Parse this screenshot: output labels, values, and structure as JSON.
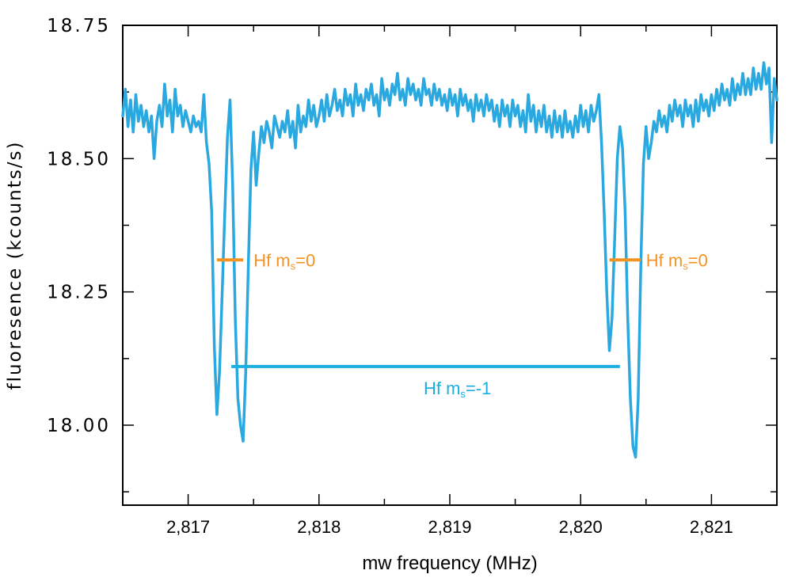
{
  "chart_data": {
    "type": "line",
    "xlabel": "mw frequency (MHz)",
    "ylabel": "fluoresence (kcounts/s)",
    "xlim": [
      2816.5,
      2821.5
    ],
    "ylim": [
      17.85,
      18.75
    ],
    "xticks": [
      2817,
      2818,
      2819,
      2820,
      2821
    ],
    "xtick_labels": [
      "2,817",
      "2,818",
      "2,819",
      "2,820",
      "2,821"
    ],
    "yticks": [
      18.0,
      18.25,
      18.5,
      18.75
    ],
    "ytick_labels": [
      "18.00",
      "18.25",
      "18.50",
      "18.75"
    ],
    "x_minor_step": 0.5,
    "y_minor_step": 0.125,
    "series": [
      {
        "color": "#2AA8E0",
        "points": [
          [
            2816.5,
            18.58
          ],
          [
            2816.52,
            18.63
          ],
          [
            2816.54,
            18.56
          ],
          [
            2816.56,
            18.61
          ],
          [
            2816.58,
            18.55
          ],
          [
            2816.6,
            18.62
          ],
          [
            2816.62,
            18.57
          ],
          [
            2816.64,
            18.6
          ],
          [
            2816.66,
            18.56
          ],
          [
            2816.68,
            18.59
          ],
          [
            2816.7,
            18.55
          ],
          [
            2816.72,
            18.58
          ],
          [
            2816.74,
            18.5
          ],
          [
            2816.76,
            18.57
          ],
          [
            2816.78,
            18.6
          ],
          [
            2816.8,
            18.56
          ],
          [
            2816.82,
            18.64
          ],
          [
            2816.84,
            18.58
          ],
          [
            2816.86,
            18.61
          ],
          [
            2816.88,
            18.55
          ],
          [
            2816.9,
            18.63
          ],
          [
            2816.92,
            18.58
          ],
          [
            2816.94,
            18.6
          ],
          [
            2816.96,
            18.56
          ],
          [
            2816.98,
            18.59
          ],
          [
            2817.0,
            18.57
          ],
          [
            2817.02,
            18.55
          ],
          [
            2817.04,
            18.58
          ],
          [
            2817.06,
            18.56
          ],
          [
            2817.08,
            18.57
          ],
          [
            2817.1,
            18.55
          ],
          [
            2817.12,
            18.62
          ],
          [
            2817.14,
            18.53
          ],
          [
            2817.16,
            18.49
          ],
          [
            2817.18,
            18.4
          ],
          [
            2817.2,
            18.15
          ],
          [
            2817.22,
            18.02
          ],
          [
            2817.24,
            18.1
          ],
          [
            2817.26,
            18.25
          ],
          [
            2817.28,
            18.4
          ],
          [
            2817.3,
            18.54
          ],
          [
            2817.32,
            18.61
          ],
          [
            2817.34,
            18.45
          ],
          [
            2817.36,
            18.2
          ],
          [
            2817.38,
            18.05
          ],
          [
            2817.4,
            18.0
          ],
          [
            2817.42,
            17.97
          ],
          [
            2817.44,
            18.1
          ],
          [
            2817.46,
            18.3
          ],
          [
            2817.48,
            18.48
          ],
          [
            2817.5,
            18.55
          ],
          [
            2817.52,
            18.45
          ],
          [
            2817.54,
            18.51
          ],
          [
            2817.56,
            18.56
          ],
          [
            2817.58,
            18.53
          ],
          [
            2817.6,
            18.57
          ],
          [
            2817.62,
            18.55
          ],
          [
            2817.64,
            18.52
          ],
          [
            2817.66,
            18.58
          ],
          [
            2817.68,
            18.56
          ],
          [
            2817.7,
            18.54
          ],
          [
            2817.72,
            18.57
          ],
          [
            2817.74,
            18.55
          ],
          [
            2817.76,
            18.59
          ],
          [
            2817.78,
            18.54
          ],
          [
            2817.8,
            18.57
          ],
          [
            2817.82,
            18.52
          ],
          [
            2817.84,
            18.6
          ],
          [
            2817.86,
            18.55
          ],
          [
            2817.88,
            18.58
          ],
          [
            2817.9,
            18.56
          ],
          [
            2817.92,
            18.61
          ],
          [
            2817.94,
            18.57
          ],
          [
            2817.96,
            18.6
          ],
          [
            2817.98,
            18.56
          ],
          [
            2818.0,
            18.58
          ],
          [
            2818.02,
            18.61
          ],
          [
            2818.04,
            18.57
          ],
          [
            2818.06,
            18.62
          ],
          [
            2818.08,
            18.58
          ],
          [
            2818.1,
            18.6
          ],
          [
            2818.12,
            18.63
          ],
          [
            2818.14,
            18.59
          ],
          [
            2818.16,
            18.61
          ],
          [
            2818.18,
            18.58
          ],
          [
            2818.2,
            18.63
          ],
          [
            2818.22,
            18.6
          ],
          [
            2818.24,
            18.62
          ],
          [
            2818.26,
            18.58
          ],
          [
            2818.28,
            18.64
          ],
          [
            2818.3,
            18.6
          ],
          [
            2818.32,
            18.62
          ],
          [
            2818.34,
            18.59
          ],
          [
            2818.36,
            18.63
          ],
          [
            2818.38,
            18.61
          ],
          [
            2818.4,
            18.64
          ],
          [
            2818.42,
            18.6
          ],
          [
            2818.44,
            18.62
          ],
          [
            2818.46,
            18.58
          ],
          [
            2818.48,
            18.65
          ],
          [
            2818.5,
            18.61
          ],
          [
            2818.52,
            18.63
          ],
          [
            2818.54,
            18.6
          ],
          [
            2818.56,
            18.64
          ],
          [
            2818.58,
            18.62
          ],
          [
            2818.6,
            18.66
          ],
          [
            2818.62,
            18.61
          ],
          [
            2818.64,
            18.63
          ],
          [
            2818.66,
            18.6
          ],
          [
            2818.68,
            18.65
          ],
          [
            2818.7,
            18.62
          ],
          [
            2818.72,
            18.64
          ],
          [
            2818.74,
            18.61
          ],
          [
            2818.76,
            18.63
          ],
          [
            2818.78,
            18.6
          ],
          [
            2818.8,
            18.65
          ],
          [
            2818.82,
            18.62
          ],
          [
            2818.84,
            18.63
          ],
          [
            2818.86,
            18.6
          ],
          [
            2818.88,
            18.64
          ],
          [
            2818.9,
            18.61
          ],
          [
            2818.92,
            18.63
          ],
          [
            2818.94,
            18.6
          ],
          [
            2818.96,
            18.62
          ],
          [
            2818.98,
            18.59
          ],
          [
            2819.0,
            18.63
          ],
          [
            2819.02,
            18.6
          ],
          [
            2819.04,
            18.62
          ],
          [
            2819.06,
            18.58
          ],
          [
            2819.08,
            18.63
          ],
          [
            2819.1,
            18.6
          ],
          [
            2819.12,
            18.62
          ],
          [
            2819.14,
            18.59
          ],
          [
            2819.16,
            18.61
          ],
          [
            2819.18,
            18.57
          ],
          [
            2819.2,
            18.62
          ],
          [
            2819.22,
            18.59
          ],
          [
            2819.24,
            18.61
          ],
          [
            2819.26,
            18.58
          ],
          [
            2819.28,
            18.62
          ],
          [
            2819.3,
            18.59
          ],
          [
            2819.32,
            18.61
          ],
          [
            2819.34,
            18.57
          ],
          [
            2819.36,
            18.6
          ],
          [
            2819.38,
            18.56
          ],
          [
            2819.4,
            18.61
          ],
          [
            2819.42,
            18.58
          ],
          [
            2819.44,
            18.6
          ],
          [
            2819.46,
            18.56
          ],
          [
            2819.48,
            18.61
          ],
          [
            2819.5,
            18.58
          ],
          [
            2819.52,
            18.6
          ],
          [
            2819.54,
            18.56
          ],
          [
            2819.56,
            18.59
          ],
          [
            2819.58,
            18.55
          ],
          [
            2819.6,
            18.62
          ],
          [
            2819.62,
            18.57
          ],
          [
            2819.64,
            18.6
          ],
          [
            2819.66,
            18.55
          ],
          [
            2819.68,
            18.59
          ],
          [
            2819.7,
            18.56
          ],
          [
            2819.72,
            18.6
          ],
          [
            2819.74,
            18.55
          ],
          [
            2819.76,
            18.58
          ],
          [
            2819.78,
            18.54
          ],
          [
            2819.8,
            18.59
          ],
          [
            2819.82,
            18.55
          ],
          [
            2819.84,
            18.58
          ],
          [
            2819.86,
            18.54
          ],
          [
            2819.88,
            18.59
          ],
          [
            2819.9,
            18.55
          ],
          [
            2819.92,
            18.57
          ],
          [
            2819.94,
            18.54
          ],
          [
            2819.96,
            18.58
          ],
          [
            2819.98,
            18.55
          ],
          [
            2820.0,
            18.6
          ],
          [
            2820.02,
            18.56
          ],
          [
            2820.04,
            18.59
          ],
          [
            2820.06,
            18.55
          ],
          [
            2820.08,
            18.6
          ],
          [
            2820.1,
            18.57
          ],
          [
            2820.12,
            18.59
          ],
          [
            2820.14,
            18.62
          ],
          [
            2820.16,
            18.53
          ],
          [
            2820.18,
            18.4
          ],
          [
            2820.2,
            18.25
          ],
          [
            2820.22,
            18.14
          ],
          [
            2820.24,
            18.2
          ],
          [
            2820.26,
            18.35
          ],
          [
            2820.28,
            18.5
          ],
          [
            2820.3,
            18.56
          ],
          [
            2820.32,
            18.52
          ],
          [
            2820.34,
            18.4
          ],
          [
            2820.36,
            18.2
          ],
          [
            2820.38,
            18.05
          ],
          [
            2820.4,
            17.96
          ],
          [
            2820.42,
            17.94
          ],
          [
            2820.44,
            18.05
          ],
          [
            2820.46,
            18.3
          ],
          [
            2820.48,
            18.49
          ],
          [
            2820.5,
            18.56
          ],
          [
            2820.52,
            18.5
          ],
          [
            2820.54,
            18.53
          ],
          [
            2820.56,
            18.57
          ],
          [
            2820.58,
            18.55
          ],
          [
            2820.6,
            18.59
          ],
          [
            2820.62,
            18.56
          ],
          [
            2820.64,
            18.58
          ],
          [
            2820.66,
            18.55
          ],
          [
            2820.68,
            18.6
          ],
          [
            2820.7,
            18.57
          ],
          [
            2820.72,
            18.61
          ],
          [
            2820.74,
            18.58
          ],
          [
            2820.76,
            18.6
          ],
          [
            2820.78,
            18.56
          ],
          [
            2820.8,
            18.61
          ],
          [
            2820.82,
            18.58
          ],
          [
            2820.84,
            18.6
          ],
          [
            2820.86,
            18.56
          ],
          [
            2820.88,
            18.61
          ],
          [
            2820.9,
            18.57
          ],
          [
            2820.92,
            18.62
          ],
          [
            2820.94,
            18.59
          ],
          [
            2820.96,
            18.61
          ],
          [
            2820.98,
            18.58
          ],
          [
            2821.0,
            18.62
          ],
          [
            2821.02,
            18.59
          ],
          [
            2821.04,
            18.63
          ],
          [
            2821.06,
            18.6
          ],
          [
            2821.08,
            18.64
          ],
          [
            2821.1,
            18.61
          ],
          [
            2821.12,
            18.63
          ],
          [
            2821.14,
            18.6
          ],
          [
            2821.16,
            18.65
          ],
          [
            2821.18,
            18.61
          ],
          [
            2821.2,
            18.64
          ],
          [
            2821.22,
            18.62
          ],
          [
            2821.24,
            18.66
          ],
          [
            2821.26,
            18.62
          ],
          [
            2821.28,
            18.65
          ],
          [
            2821.3,
            18.62
          ],
          [
            2821.32,
            18.67
          ],
          [
            2821.34,
            18.63
          ],
          [
            2821.36,
            18.66
          ],
          [
            2821.38,
            18.63
          ],
          [
            2821.4,
            18.68
          ],
          [
            2821.42,
            18.64
          ],
          [
            2821.44,
            18.67
          ],
          [
            2821.46,
            18.53
          ],
          [
            2821.48,
            18.65
          ],
          [
            2821.5,
            18.61
          ]
        ]
      }
    ],
    "annotations": [
      {
        "text_main": "Hf m",
        "text_sub": "s",
        "text_tail": "=0",
        "color": "#F39323",
        "x0": 2817.22,
        "x1": 2817.42,
        "y": 18.31,
        "label_x": 2817.5
      },
      {
        "text_main": "Hf m",
        "text_sub": "s",
        "text_tail": "=0",
        "color": "#F39323",
        "x0": 2820.22,
        "x1": 2820.46,
        "y": 18.31,
        "label_x": 2820.5
      },
      {
        "text_main": "Hf m",
        "text_sub": "s",
        "text_tail": "=-1",
        "color": "#1AAFE0",
        "x0": 2817.33,
        "x1": 2820.3,
        "y": 18.11,
        "label_x": 2818.8,
        "label_y": 18.07
      }
    ]
  }
}
